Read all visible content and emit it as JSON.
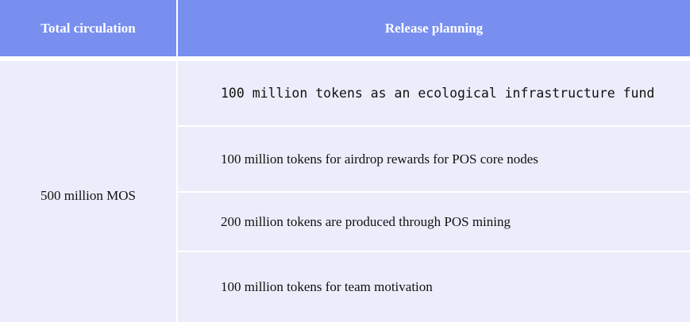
{
  "table": {
    "headers": {
      "total_circulation": "Total circulation",
      "release_planning": "Release planning"
    },
    "total_value": "500 million MOS",
    "release_items": [
      "100 million tokens as an ecological infrastructure fund",
      "100 million tokens for airdrop rewards for POS core nodes",
      "200 million tokens are produced through POS mining",
      "100 million tokens for team motivation"
    ],
    "colors": {
      "header_background": "#788ff0",
      "cell_background": "#ecedfb"
    }
  }
}
